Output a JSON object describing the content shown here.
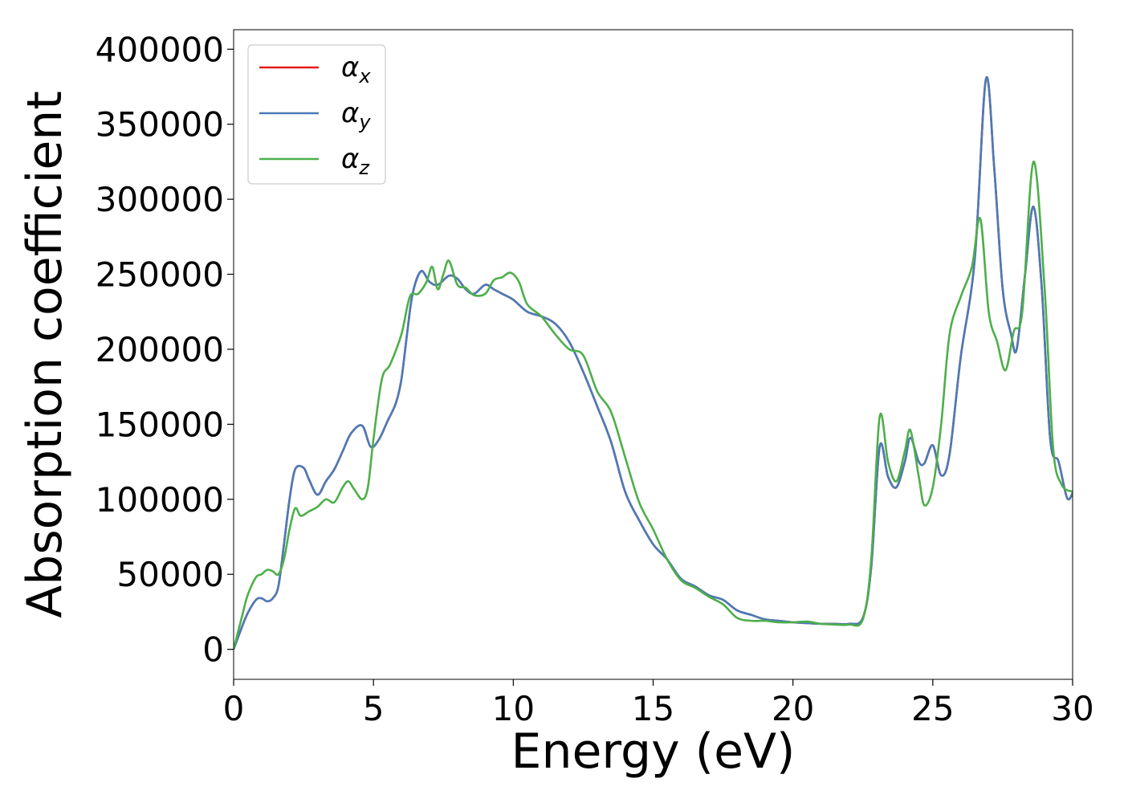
{
  "chart_data": {
    "type": "line",
    "title": "",
    "xlabel": "Energy (eV)",
    "ylabel": "Absorption coefficient",
    "xlim": [
      0,
      30
    ],
    "ylim": [
      -20000,
      413000
    ],
    "xticks": [
      0,
      5,
      10,
      15,
      20,
      25,
      30
    ],
    "yticks": [
      0,
      50000,
      100000,
      150000,
      200000,
      250000,
      300000,
      350000,
      400000
    ],
    "grid": false,
    "legend_position": "top-left",
    "series": [
      {
        "name": "αx",
        "legend_symbol": "α",
        "legend_subscript": "x",
        "color": "#e41a1c",
        "points": [
          [
            0,
            0
          ],
          [
            0.3,
            15000
          ],
          [
            0.5,
            24000
          ],
          [
            0.8,
            33000
          ],
          [
            1.0,
            34000
          ],
          [
            1.2,
            32000
          ],
          [
            1.4,
            34000
          ],
          [
            1.6,
            42000
          ],
          [
            1.8,
            70000
          ],
          [
            2.0,
            100000
          ],
          [
            2.2,
            120000
          ],
          [
            2.5,
            121000
          ],
          [
            2.7,
            113000
          ],
          [
            3.0,
            103000
          ],
          [
            3.3,
            112000
          ],
          [
            3.6,
            120000
          ],
          [
            3.9,
            132000
          ],
          [
            4.2,
            144000
          ],
          [
            4.6,
            149000
          ],
          [
            4.9,
            135000
          ],
          [
            5.2,
            140000
          ],
          [
            5.5,
            152000
          ],
          [
            5.8,
            164000
          ],
          [
            6.0,
            180000
          ],
          [
            6.2,
            210000
          ],
          [
            6.4,
            237000
          ],
          [
            6.7,
            252000
          ],
          [
            7.0,
            245000
          ],
          [
            7.3,
            243000
          ],
          [
            7.7,
            249000
          ],
          [
            8.0,
            247000
          ],
          [
            8.3,
            240000
          ],
          [
            8.6,
            237000
          ],
          [
            9.0,
            243000
          ],
          [
            9.3,
            240000
          ],
          [
            9.6,
            237000
          ],
          [
            10.0,
            233000
          ],
          [
            10.5,
            225000
          ],
          [
            11.0,
            222000
          ],
          [
            11.5,
            217000
          ],
          [
            12.0,
            205000
          ],
          [
            12.5,
            185000
          ],
          [
            13.0,
            162000
          ],
          [
            13.5,
            138000
          ],
          [
            14.0,
            105000
          ],
          [
            14.5,
            86000
          ],
          [
            15.0,
            70000
          ],
          [
            15.5,
            60000
          ],
          [
            16.0,
            47000
          ],
          [
            16.5,
            42000
          ],
          [
            17.0,
            36000
          ],
          [
            17.5,
            33000
          ],
          [
            18.0,
            26000
          ],
          [
            18.5,
            23000
          ],
          [
            19.0,
            20000
          ],
          [
            19.5,
            19000
          ],
          [
            20.0,
            18000
          ],
          [
            20.5,
            17500
          ],
          [
            21.0,
            17000
          ],
          [
            21.5,
            17000
          ],
          [
            22.0,
            17000
          ],
          [
            22.5,
            21000
          ],
          [
            22.8,
            55000
          ],
          [
            23.1,
            135000
          ],
          [
            23.4,
            115000
          ],
          [
            23.7,
            108000
          ],
          [
            24.0,
            125000
          ],
          [
            24.2,
            141000
          ],
          [
            24.5,
            125000
          ],
          [
            24.7,
            124000
          ],
          [
            25.0,
            136000
          ],
          [
            25.3,
            116000
          ],
          [
            25.6,
            130000
          ],
          [
            26.0,
            195000
          ],
          [
            26.5,
            260000
          ],
          [
            26.9,
            380000
          ],
          [
            27.2,
            320000
          ],
          [
            27.5,
            240000
          ],
          [
            27.8,
            210000
          ],
          [
            28.0,
            200000
          ],
          [
            28.3,
            250000
          ],
          [
            28.6,
            295000
          ],
          [
            28.9,
            240000
          ],
          [
            29.2,
            140000
          ],
          [
            29.5,
            125000
          ],
          [
            29.8,
            101000
          ],
          [
            30.0,
            104000
          ]
        ]
      },
      {
        "name": "αy",
        "legend_symbol": "α",
        "legend_subscript": "y",
        "color": "#4a7bb7",
        "points": [
          [
            0,
            0
          ],
          [
            0.3,
            15000
          ],
          [
            0.5,
            24000
          ],
          [
            0.8,
            33000
          ],
          [
            1.0,
            34000
          ],
          [
            1.2,
            32000
          ],
          [
            1.4,
            34000
          ],
          [
            1.6,
            42000
          ],
          [
            1.8,
            70000
          ],
          [
            2.0,
            100000
          ],
          [
            2.2,
            120000
          ],
          [
            2.5,
            121000
          ],
          [
            2.7,
            113000
          ],
          [
            3.0,
            103000
          ],
          [
            3.3,
            112000
          ],
          [
            3.6,
            120000
          ],
          [
            3.9,
            132000
          ],
          [
            4.2,
            144000
          ],
          [
            4.6,
            149000
          ],
          [
            4.9,
            135000
          ],
          [
            5.2,
            140000
          ],
          [
            5.5,
            152000
          ],
          [
            5.8,
            164000
          ],
          [
            6.0,
            180000
          ],
          [
            6.2,
            210000
          ],
          [
            6.4,
            237000
          ],
          [
            6.7,
            252000
          ],
          [
            7.0,
            245000
          ],
          [
            7.3,
            243000
          ],
          [
            7.7,
            249000
          ],
          [
            8.0,
            247000
          ],
          [
            8.3,
            240000
          ],
          [
            8.6,
            237000
          ],
          [
            9.0,
            243000
          ],
          [
            9.3,
            240000
          ],
          [
            9.6,
            237000
          ],
          [
            10.0,
            233000
          ],
          [
            10.5,
            225000
          ],
          [
            11.0,
            222000
          ],
          [
            11.5,
            217000
          ],
          [
            12.0,
            205000
          ],
          [
            12.5,
            185000
          ],
          [
            13.0,
            162000
          ],
          [
            13.5,
            138000
          ],
          [
            14.0,
            105000
          ],
          [
            14.5,
            86000
          ],
          [
            15.0,
            70000
          ],
          [
            15.5,
            60000
          ],
          [
            16.0,
            47000
          ],
          [
            16.5,
            42000
          ],
          [
            17.0,
            36000
          ],
          [
            17.5,
            33000
          ],
          [
            18.0,
            26000
          ],
          [
            18.5,
            23000
          ],
          [
            19.0,
            20000
          ],
          [
            19.5,
            19000
          ],
          [
            20.0,
            18000
          ],
          [
            20.5,
            17500
          ],
          [
            21.0,
            17000
          ],
          [
            21.5,
            17000
          ],
          [
            22.0,
            17000
          ],
          [
            22.5,
            21000
          ],
          [
            22.8,
            55000
          ],
          [
            23.1,
            135000
          ],
          [
            23.4,
            115000
          ],
          [
            23.7,
            108000
          ],
          [
            24.0,
            125000
          ],
          [
            24.2,
            141000
          ],
          [
            24.5,
            125000
          ],
          [
            24.7,
            124000
          ],
          [
            25.0,
            136000
          ],
          [
            25.3,
            116000
          ],
          [
            25.6,
            130000
          ],
          [
            26.0,
            195000
          ],
          [
            26.5,
            260000
          ],
          [
            26.9,
            380000
          ],
          [
            27.2,
            320000
          ],
          [
            27.5,
            240000
          ],
          [
            27.8,
            210000
          ],
          [
            28.0,
            200000
          ],
          [
            28.3,
            250000
          ],
          [
            28.6,
            295000
          ],
          [
            28.9,
            240000
          ],
          [
            29.2,
            140000
          ],
          [
            29.5,
            125000
          ],
          [
            29.8,
            101000
          ],
          [
            30.0,
            104000
          ]
        ]
      },
      {
        "name": "αz",
        "legend_symbol": "α",
        "legend_subscript": "z",
        "color": "#4daf4a",
        "points": [
          [
            0,
            0
          ],
          [
            0.3,
            22000
          ],
          [
            0.5,
            36000
          ],
          [
            0.8,
            48000
          ],
          [
            1.0,
            50000
          ],
          [
            1.2,
            53000
          ],
          [
            1.4,
            52000
          ],
          [
            1.6,
            50000
          ],
          [
            1.8,
            60000
          ],
          [
            2.0,
            80000
          ],
          [
            2.2,
            94000
          ],
          [
            2.4,
            89000
          ],
          [
            2.7,
            92000
          ],
          [
            3.0,
            95000
          ],
          [
            3.3,
            100000
          ],
          [
            3.6,
            98000
          ],
          [
            3.9,
            108000
          ],
          [
            4.1,
            112000
          ],
          [
            4.3,
            107000
          ],
          [
            4.6,
            100000
          ],
          [
            4.8,
            108000
          ],
          [
            5.0,
            140000
          ],
          [
            5.3,
            180000
          ],
          [
            5.6,
            190000
          ],
          [
            6.0,
            210000
          ],
          [
            6.3,
            235000
          ],
          [
            6.6,
            237000
          ],
          [
            6.9,
            245000
          ],
          [
            7.1,
            255000
          ],
          [
            7.3,
            240000
          ],
          [
            7.5,
            250000
          ],
          [
            7.7,
            259000
          ],
          [
            8.0,
            243000
          ],
          [
            8.3,
            241000
          ],
          [
            8.6,
            236000
          ],
          [
            9.0,
            237000
          ],
          [
            9.3,
            246000
          ],
          [
            9.6,
            248000
          ],
          [
            9.9,
            251000
          ],
          [
            10.2,
            245000
          ],
          [
            10.5,
            230000
          ],
          [
            11.0,
            222000
          ],
          [
            11.5,
            210000
          ],
          [
            12.0,
            200000
          ],
          [
            12.5,
            196000
          ],
          [
            13.0,
            172000
          ],
          [
            13.5,
            158000
          ],
          [
            14.0,
            128000
          ],
          [
            14.5,
            98000
          ],
          [
            15.0,
            80000
          ],
          [
            15.5,
            60000
          ],
          [
            16.0,
            46000
          ],
          [
            16.5,
            41000
          ],
          [
            17.0,
            35000
          ],
          [
            17.5,
            30000
          ],
          [
            18.0,
            21000
          ],
          [
            18.5,
            19000
          ],
          [
            19.0,
            19000
          ],
          [
            19.5,
            18000
          ],
          [
            20.0,
            18000
          ],
          [
            20.5,
            18500
          ],
          [
            21.0,
            17000
          ],
          [
            21.5,
            16500
          ],
          [
            22.0,
            16500
          ],
          [
            22.5,
            20000
          ],
          [
            22.8,
            60000
          ],
          [
            23.1,
            155000
          ],
          [
            23.4,
            125000
          ],
          [
            23.7,
            112000
          ],
          [
            24.0,
            132000
          ],
          [
            24.2,
            146000
          ],
          [
            24.5,
            115000
          ],
          [
            24.7,
            96000
          ],
          [
            25.0,
            108000
          ],
          [
            25.3,
            150000
          ],
          [
            25.6,
            210000
          ],
          [
            26.0,
            235000
          ],
          [
            26.4,
            255000
          ],
          [
            26.7,
            287000
          ],
          [
            27.0,
            225000
          ],
          [
            27.3,
            205000
          ],
          [
            27.6,
            186000
          ],
          [
            27.9,
            212000
          ],
          [
            28.2,
            225000
          ],
          [
            28.6,
            325000
          ],
          [
            29.0,
            240000
          ],
          [
            29.3,
            135000
          ],
          [
            29.6,
            110000
          ],
          [
            30.0,
            105000
          ]
        ]
      }
    ]
  }
}
